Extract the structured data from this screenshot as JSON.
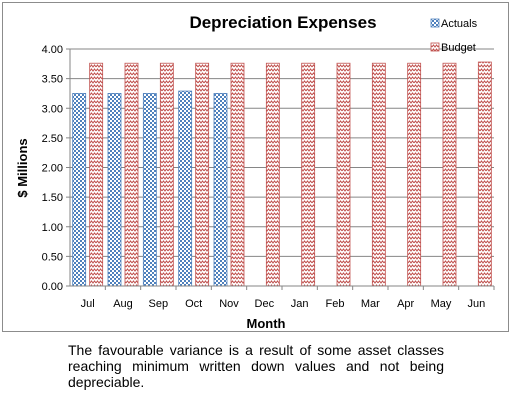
{
  "chart_data": {
    "type": "bar",
    "title": "Depreciation Expenses",
    "xlabel": "Month",
    "ylabel": "$ Millions",
    "categories": [
      "Jul",
      "Aug",
      "Sep",
      "Oct",
      "Nov",
      "Dec",
      "Jan",
      "Feb",
      "Mar",
      "Apr",
      "May",
      "Jun"
    ],
    "series": [
      {
        "name": "Actuals",
        "values": [
          3.25,
          3.25,
          3.25,
          3.29,
          3.25,
          null,
          null,
          null,
          null,
          null,
          null,
          null
        ],
        "color": "#4f81bd",
        "pattern": "checker"
      },
      {
        "name": "Budget",
        "values": [
          3.76,
          3.76,
          3.76,
          3.76,
          3.76,
          3.76,
          3.76,
          3.76,
          3.76,
          3.76,
          3.76,
          3.78
        ],
        "color": "#c0504d",
        "pattern": "zigzag"
      }
    ],
    "ylim": [
      0,
      4
    ],
    "yticks": [
      "0.00",
      "0.50",
      "1.00",
      "1.50",
      "2.00",
      "2.50",
      "3.00",
      "3.50",
      "4.00"
    ],
    "grid": true,
    "legend_position": "top-right"
  },
  "caption": "The favourable variance is a result of some asset classes reaching minimum written down values and not being depreciable."
}
